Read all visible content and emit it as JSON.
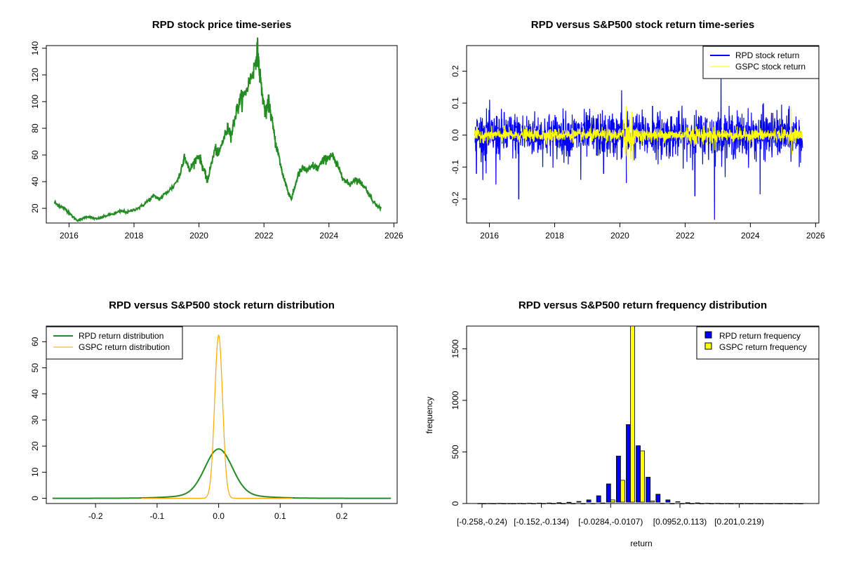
{
  "colors": {
    "rpd_price": "#228b22",
    "rpd_return": "#0000ff",
    "gspc_return": "#ffff00",
    "rpd_density": "#228b22",
    "gspc_density": "#ffa500",
    "rpd_hist": "#0000ff",
    "gspc_hist": "#ffff00"
  },
  "chart_data": [
    {
      "type": "line",
      "title": "RPD stock price time-series",
      "xlabel": "",
      "ylabel": "",
      "x_ticks": [
        "2016",
        "2018",
        "2020",
        "2022",
        "2024",
        "2026"
      ],
      "y_ticks": [
        "20",
        "40",
        "60",
        "80",
        "100",
        "120",
        "140"
      ],
      "xlim": [
        2015.3,
        2026.1
      ],
      "ylim": [
        9,
        142
      ],
      "series": [
        {
          "x": [
            2015.55,
            2015.7,
            2015.85,
            2016.0,
            2016.1,
            2016.25,
            2016.4,
            2016.55,
            2016.7,
            2016.85,
            2017.0,
            2017.2,
            2017.4,
            2017.6,
            2017.8,
            2018.0,
            2018.2,
            2018.4,
            2018.6,
            2018.8,
            2019.0,
            2019.2,
            2019.4,
            2019.55,
            2019.7,
            2019.85,
            2020.0,
            2020.1,
            2020.2,
            2020.25,
            2020.35,
            2020.5,
            2020.6,
            2020.75,
            2020.9,
            2021.0,
            2021.1,
            2021.25,
            2021.4,
            2021.55,
            2021.7,
            2021.8,
            2021.85,
            2021.95,
            2022.05,
            2022.15,
            2022.25,
            2022.35,
            2022.45,
            2022.55,
            2022.65,
            2022.75,
            2022.85,
            2022.95,
            2023.05,
            2023.2,
            2023.35,
            2023.5,
            2023.65,
            2023.8,
            2023.95,
            2024.1,
            2024.2,
            2024.35,
            2024.5,
            2024.65,
            2024.8,
            2024.95,
            2025.1,
            2025.25,
            2025.4,
            2025.5,
            2025.6
          ],
          "values": [
            24,
            22,
            20,
            17,
            14,
            11,
            12,
            14,
            13,
            12,
            13,
            15,
            16,
            18,
            17,
            19,
            21,
            25,
            29,
            27,
            32,
            36,
            44,
            60,
            48,
            55,
            60,
            52,
            45,
            40,
            50,
            65,
            60,
            72,
            80,
            75,
            88,
            100,
            105,
            115,
            125,
            140,
            125,
            105,
            90,
            100,
            85,
            70,
            60,
            48,
            40,
            32,
            27,
            36,
            45,
            50,
            48,
            52,
            50,
            55,
            58,
            60,
            54,
            48,
            40,
            38,
            42,
            40,
            36,
            30,
            24,
            22,
            20
          ]
        }
      ]
    },
    {
      "type": "line",
      "title": "RPD versus S&P500 stock return time-series",
      "xlabel": "",
      "ylabel": "",
      "x_ticks": [
        "2016",
        "2018",
        "2020",
        "2022",
        "2024",
        "2026"
      ],
      "y_ticks": [
        "-0.2",
        "-0.1",
        "0.0",
        "0.1",
        "0.2"
      ],
      "xlim": [
        2015.3,
        2026.1
      ],
      "ylim": [
        -0.275,
        0.28
      ],
      "legend": {
        "position": "top-right",
        "entries": [
          "RPD stock return",
          "GSPC stock return"
        ]
      },
      "series": [
        {
          "name": "RPD stock return",
          "x_range": [
            2015.55,
            2025.6
          ],
          "typical_abs": 0.035,
          "spikes": [
            [
              2015.6,
              -0.12
            ],
            [
              2015.9,
              -0.12
            ],
            [
              2016.2,
              -0.155
            ],
            [
              2016.9,
              -0.2
            ],
            [
              2018.8,
              -0.14
            ],
            [
              2019.5,
              -0.12
            ],
            [
              2020.05,
              0.14
            ],
            [
              2020.2,
              -0.15
            ],
            [
              2021.0,
              0.09
            ],
            [
              2022.3,
              -0.19
            ],
            [
              2022.9,
              -0.265
            ],
            [
              2023.1,
              0.2
            ],
            [
              2024.4,
              0.1
            ],
            [
              2024.3,
              -0.185
            ],
            [
              2025.5,
              -0.1
            ]
          ]
        },
        {
          "name": "GSPC stock return",
          "x_range": [
            2015.55,
            2025.6
          ],
          "typical_abs": 0.01,
          "spikes": [
            [
              2020.2,
              0.09
            ],
            [
              2020.22,
              -0.12
            ],
            [
              2020.3,
              0.06
            ],
            [
              2025.25,
              0.09
            ],
            [
              2025.27,
              -0.06
            ]
          ]
        }
      ]
    },
    {
      "type": "line",
      "title": "RPD versus S&P500 stock return distribution",
      "xlabel": "",
      "ylabel": "",
      "x_ticks": [
        "-0.2",
        "-0.1",
        "0.0",
        "0.1",
        "0.2"
      ],
      "y_ticks": [
        "0",
        "10",
        "20",
        "30",
        "40",
        "50",
        "60"
      ],
      "xlim": [
        -0.28,
        0.29
      ],
      "ylim": [
        -2,
        66
      ],
      "legend": {
        "position": "top-left",
        "entries": [
          "RPD return distribution",
          "GSPC return distribution"
        ]
      },
      "series": [
        {
          "name": "RPD return distribution",
          "x_range": [
            -0.27,
            0.28
          ],
          "peak_x": 0.0,
          "peak": 17.5,
          "sd": 0.022
        },
        {
          "name": "GSPC return distribution",
          "x_range": [
            -0.125,
            0.12
          ],
          "peak_x": 0.0,
          "peak": 62.5,
          "sd": 0.0064
        }
      ]
    },
    {
      "type": "bar",
      "title": "RPD versus S&P500 return frequency distribution",
      "xlabel": "return",
      "ylabel": "frequency",
      "x_tick_labels": [
        "[-0.258,-0.24)",
        "[-0.152,-0.134)",
        "[-0.0284,-0.0107)",
        "[0.0952,0.113)",
        "[0.201,0.219)"
      ],
      "x_tick_bins": [
        0,
        6,
        13,
        20,
        26
      ],
      "y_ticks": [
        "0",
        "500",
        "1000",
        "1500"
      ],
      "ylim": [
        0,
        1720
      ],
      "legend": {
        "position": "top-right",
        "entries": [
          "RPD return frequency",
          "GSPC return frequency"
        ]
      },
      "series": [
        {
          "name": "RPD return frequency",
          "values": [
            1,
            1,
            2,
            1,
            2,
            3,
            4,
            5,
            8,
            12,
            20,
            35,
            75,
            190,
            460,
            765,
            560,
            255,
            90,
            35,
            18,
            8,
            6,
            3,
            2,
            1,
            1,
            1,
            1,
            1,
            1,
            1,
            1
          ]
        },
        {
          "name": "GSPC return frequency",
          "values": [
            0,
            0,
            0,
            0,
            0,
            0,
            0,
            0,
            0,
            0,
            0,
            1,
            5,
            35,
            225,
            1720,
            510,
            25,
            2,
            0,
            0,
            0,
            0,
            0,
            0,
            0,
            0,
            0,
            0,
            0,
            0,
            0,
            0
          ]
        }
      ]
    }
  ]
}
